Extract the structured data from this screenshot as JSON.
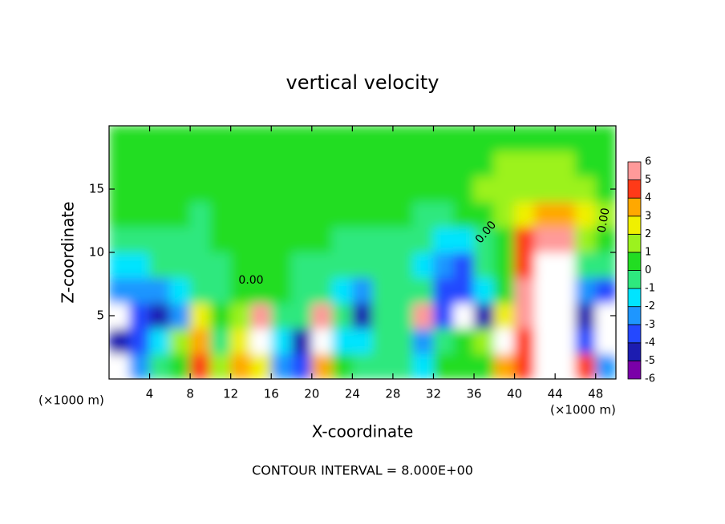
{
  "chart_data": {
    "type": "contour",
    "title": "vertical velocity",
    "x_label": "X-coordinate",
    "y_label": "Z-coordinate",
    "x_unit_left": "(×1000 m)",
    "x_unit_right": "(×1000 m)",
    "footer": "CONTOUR INTERVAL = 8.000E+00",
    "contour_labels": [
      "0.00",
      "0.00",
      "0.00"
    ],
    "xlim": [
      0,
      50
    ],
    "ylim": [
      0,
      20
    ],
    "xticks": [
      4,
      8,
      12,
      16,
      20,
      24,
      28,
      32,
      36,
      40,
      44,
      48
    ],
    "yticks": [
      5,
      10,
      15
    ],
    "x": [
      1,
      3,
      5,
      7,
      9,
      11,
      13,
      15,
      17,
      19,
      21,
      23,
      25,
      27,
      29,
      31,
      33,
      35,
      37,
      39,
      41,
      43,
      45,
      47,
      49
    ],
    "y": [
      1,
      3,
      5,
      7,
      9,
      11,
      13,
      15,
      17,
      19
    ],
    "z": [
      [
        7,
        -3,
        -1,
        0,
        4,
        1,
        3,
        2,
        -3,
        -4,
        3,
        0,
        -1,
        -1,
        -1,
        -2,
        0,
        0,
        0,
        3,
        4,
        7,
        7,
        4,
        -3
      ],
      [
        -5,
        -4,
        -2,
        1,
        3,
        -1,
        2,
        7,
        -2,
        -5,
        7,
        -2,
        -2,
        -1,
        -1,
        -3,
        -1,
        0,
        1,
        7,
        4,
        7,
        7,
        -4,
        7
      ],
      [
        7,
        -4,
        -5,
        -3,
        2,
        0,
        1,
        5,
        -1,
        -1,
        6,
        -1,
        -5,
        -1,
        -1,
        5,
        -4,
        7,
        -5,
        2,
        5,
        7,
        7,
        -5,
        7
      ],
      [
        -3,
        -3,
        -3,
        -2,
        -1,
        -1,
        0,
        0,
        0,
        -1,
        -1,
        -2,
        -3,
        -1,
        -1,
        -1,
        -4,
        -4,
        -2,
        0,
        5,
        7,
        7,
        -3,
        -4
      ],
      [
        -2,
        -2,
        -1,
        -1,
        -1,
        -1,
        0,
        0,
        0,
        -1,
        -1,
        -1,
        -1,
        -1,
        -1,
        -2,
        -3,
        -4,
        -1,
        0,
        4,
        7,
        7,
        -1,
        -1
      ],
      [
        -1,
        -1,
        -1,
        -1,
        -1,
        0,
        0,
        0,
        0,
        0,
        0,
        -1,
        -1,
        -1,
        -1,
        -1,
        -2,
        -2,
        -1,
        0,
        4,
        6,
        5,
        1,
        0
      ],
      [
        0,
        0,
        0,
        0,
        -1,
        0,
        0,
        0,
        0,
        0,
        0,
        0,
        0,
        0,
        0,
        -1,
        -1,
        0,
        0,
        1,
        2,
        3,
        3,
        2,
        1
      ],
      [
        0,
        0,
        0,
        0,
        0,
        0,
        0,
        0,
        0,
        0,
        0,
        0,
        0,
        0,
        0,
        0,
        0,
        0,
        1,
        1,
        1,
        1,
        1,
        1,
        0
      ],
      [
        0,
        0,
        0,
        0,
        0,
        0,
        0,
        0,
        0,
        0,
        0,
        0,
        0,
        0,
        0,
        0,
        0,
        0,
        0,
        1,
        1,
        1,
        1,
        0,
        0
      ],
      [
        0,
        0,
        0,
        0,
        0,
        0,
        0,
        0,
        0,
        0,
        0,
        0,
        0,
        0,
        0,
        0,
        0,
        0,
        0,
        0,
        0,
        0,
        0,
        0,
        0
      ]
    ],
    "levels": [
      -6,
      -5,
      -4,
      -3,
      -2,
      -1,
      0,
      1,
      2,
      3,
      4,
      5,
      6
    ],
    "colors": [
      "#7a00a8",
      "#1c1cb0",
      "#2448ff",
      "#1e96ff",
      "#00e4ff",
      "#2ee87e",
      "#22dd22",
      "#9cf21e",
      "#f0f000",
      "#ffa800",
      "#ff3a18",
      "#ff9a9a"
    ],
    "out_of_range_color": "#ffffff"
  }
}
